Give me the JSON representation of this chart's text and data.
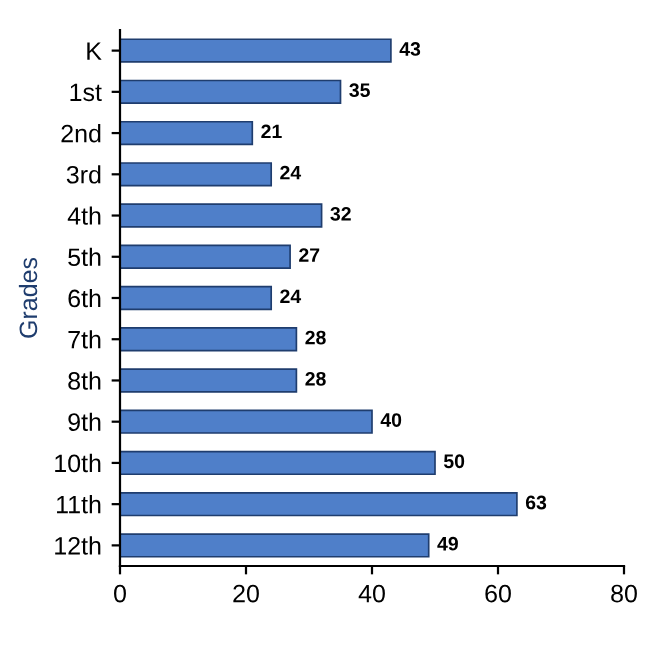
{
  "chart_data": {
    "type": "bar",
    "orientation": "horizontal",
    "ylabel": "Grades",
    "categories": [
      "K",
      "1st",
      "2nd",
      "3rd",
      "4th",
      "5th",
      "6th",
      "7th",
      "8th",
      "9th",
      "10th",
      "11th",
      "12th"
    ],
    "values": [
      43,
      35,
      21,
      24,
      32,
      27,
      24,
      28,
      28,
      40,
      50,
      63,
      49
    ],
    "color": "#4f7fc9",
    "xlim": [
      0,
      80
    ],
    "xticks": [
      0,
      20,
      40,
      60,
      80
    ],
    "data_labels": true
  }
}
